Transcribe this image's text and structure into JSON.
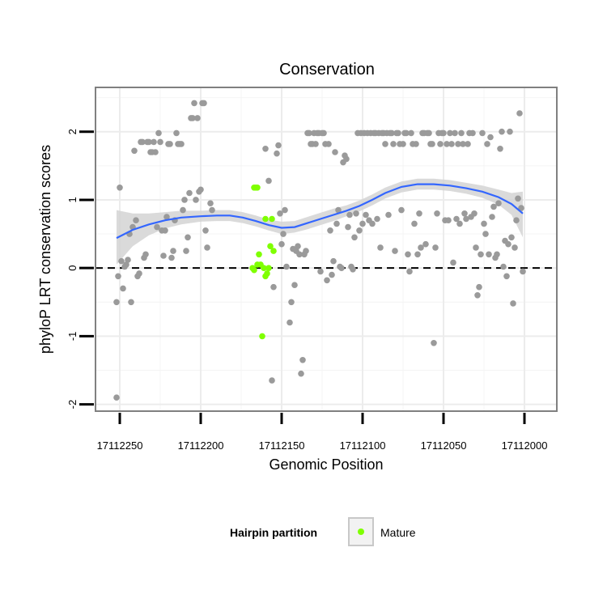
{
  "chart_data": {
    "type": "scatter",
    "title": "Conservation",
    "xlabel": "Genomic Position",
    "ylabel": "phyloP LRT conservation scores",
    "x_reversed": true,
    "xlim": [
      17112265,
      17111980
    ],
    "ylim": [
      -2.1,
      2.65
    ],
    "x_ticks": [
      17112250,
      17112200,
      17112150,
      17112100,
      17112050,
      17112000
    ],
    "y_ticks": [
      -2,
      -1,
      0,
      1,
      2
    ],
    "grid": true,
    "reference_line": {
      "y": 0,
      "style": "dashed"
    },
    "legend": {
      "title": "Hairpin partition",
      "placement": "bottom",
      "entries": [
        "Mature"
      ]
    },
    "colors": {
      "other": "#9a9a9a",
      "mature": "#7fff00",
      "smooth": "#3366ff",
      "band": "#d3d3d3"
    },
    "series": [
      {
        "group": "other",
        "points": [
          [
            17112252,
            -1.9
          ],
          [
            17112252,
            -0.5
          ],
          [
            17112251,
            -0.12
          ],
          [
            17112250,
            1.18
          ],
          [
            17112249,
            0.1
          ],
          [
            17112248,
            -0.3
          ],
          [
            17112247,
            0.02
          ],
          [
            17112246,
            0.05
          ],
          [
            17112245,
            0.12
          ],
          [
            17112244,
            0.5
          ],
          [
            17112243,
            -0.5
          ],
          [
            17112242,
            0.6
          ],
          [
            17112241,
            1.72
          ],
          [
            17112240,
            0.7
          ],
          [
            17112239,
            -0.12
          ],
          [
            17112238,
            -0.08
          ],
          [
            17112237,
            1.85
          ],
          [
            17112236,
            1.85
          ],
          [
            17112235,
            0.15
          ],
          [
            17112234,
            0.2
          ],
          [
            17112233,
            1.85
          ],
          [
            17112232,
            1.85
          ],
          [
            17112231,
            1.7
          ],
          [
            17112230,
            1.7
          ],
          [
            17112229,
            1.85
          ],
          [
            17112228,
            1.7
          ],
          [
            17112227,
            0.6
          ],
          [
            17112226,
            1.98
          ],
          [
            17112225,
            1.85
          ],
          [
            17112224,
            0.55
          ],
          [
            17112223,
            0.18
          ],
          [
            17112222,
            0.55
          ],
          [
            17112221,
            0.75
          ],
          [
            17112220,
            1.82
          ],
          [
            17112219,
            1.82
          ],
          [
            17112218,
            0.15
          ],
          [
            17112217,
            0.25
          ],
          [
            17112216,
            0.7
          ],
          [
            17112215,
            1.98
          ],
          [
            17112214,
            1.82
          ],
          [
            17112213,
            1.82
          ],
          [
            17112212,
            1.82
          ],
          [
            17112211,
            0.85
          ],
          [
            17112210,
            1.0
          ],
          [
            17112209,
            0.25
          ],
          [
            17112208,
            0.45
          ],
          [
            17112207,
            1.1
          ],
          [
            17112206,
            2.2
          ],
          [
            17112205,
            2.2
          ],
          [
            17112204,
            2.42
          ],
          [
            17112203,
            1.0
          ],
          [
            17112202,
            2.2
          ],
          [
            17112201,
            1.12
          ],
          [
            17112200,
            1.15
          ],
          [
            17112199,
            2.42
          ],
          [
            17112198,
            2.42
          ],
          [
            17112197,
            0.55
          ],
          [
            17112196,
            0.3
          ],
          [
            17112194,
            0.95
          ],
          [
            17112193,
            0.85
          ],
          [
            17112160,
            1.75
          ],
          [
            17112158,
            1.28
          ],
          [
            17112156,
            -1.65
          ],
          [
            17112155,
            -0.28
          ],
          [
            17112153,
            1.68
          ],
          [
            17112152,
            1.8
          ],
          [
            17112151,
            0.8
          ],
          [
            17112150,
            0.35
          ],
          [
            17112149,
            0.5
          ],
          [
            17112148,
            0.85
          ],
          [
            17112147,
            0.02
          ],
          [
            17112145,
            -0.8
          ],
          [
            17112144,
            -0.5
          ],
          [
            17112143,
            0.28
          ],
          [
            17112142,
            -0.25
          ],
          [
            17112141,
            0.25
          ],
          [
            17112140,
            0.32
          ],
          [
            17112139,
            0.2
          ],
          [
            17112138,
            -1.55
          ],
          [
            17112137,
            -1.35
          ],
          [
            17112136,
            0.2
          ],
          [
            17112135,
            0.25
          ],
          [
            17112134,
            1.98
          ],
          [
            17112133,
            1.98
          ],
          [
            17112132,
            1.82
          ],
          [
            17112131,
            1.82
          ],
          [
            17112130,
            1.98
          ],
          [
            17112129,
            1.82
          ],
          [
            17112128,
            1.98
          ],
          [
            17112127,
            1.98
          ],
          [
            17112126,
            -0.05
          ],
          [
            17112125,
            1.98
          ],
          [
            17112124,
            1.98
          ],
          [
            17112123,
            1.82
          ],
          [
            17112122,
            -0.18
          ],
          [
            17112121,
            1.82
          ],
          [
            17112120,
            0.55
          ],
          [
            17112119,
            -0.1
          ],
          [
            17112118,
            0.1
          ],
          [
            17112117,
            1.7
          ],
          [
            17112116,
            0.65
          ],
          [
            17112115,
            0.85
          ],
          [
            17112114,
            0.02
          ],
          [
            17112113,
            0.0
          ],
          [
            17112112,
            1.55
          ],
          [
            17112111,
            1.65
          ],
          [
            17112110,
            1.6
          ],
          [
            17112109,
            0.6
          ],
          [
            17112108,
            0.78
          ],
          [
            17112107,
            0.02
          ],
          [
            17112106,
            -0.02
          ],
          [
            17112105,
            0.45
          ],
          [
            17112104,
            0.8
          ],
          [
            17112103,
            1.98
          ],
          [
            17112102,
            0.55
          ],
          [
            17112101,
            1.98
          ],
          [
            17112100,
            0.65
          ],
          [
            17112099,
            1.98
          ],
          [
            17112098,
            0.78
          ],
          [
            17112097,
            1.98
          ],
          [
            17112096,
            0.7
          ],
          [
            17112095,
            1.98
          ],
          [
            17112094,
            0.65
          ],
          [
            17112093,
            1.98
          ],
          [
            17112092,
            1.98
          ],
          [
            17112091,
            0.72
          ],
          [
            17112090,
            1.98
          ],
          [
            17112089,
            0.3
          ],
          [
            17112088,
            1.98
          ],
          [
            17112087,
            1.98
          ],
          [
            17112086,
            1.82
          ],
          [
            17112085,
            1.98
          ],
          [
            17112084,
            0.78
          ],
          [
            17112083,
            1.98
          ],
          [
            17112082,
            1.98
          ],
          [
            17112081,
            1.82
          ],
          [
            17112080,
            0.25
          ],
          [
            17112079,
            1.98
          ],
          [
            17112078,
            1.98
          ],
          [
            17112077,
            1.82
          ],
          [
            17112076,
            0.85
          ],
          [
            17112075,
            1.82
          ],
          [
            17112074,
            1.98
          ],
          [
            17112073,
            1.98
          ],
          [
            17112072,
            0.2
          ],
          [
            17112071,
            -0.05
          ],
          [
            17112070,
            1.98
          ],
          [
            17112069,
            1.82
          ],
          [
            17112068,
            0.65
          ],
          [
            17112067,
            1.82
          ],
          [
            17112066,
            0.2
          ],
          [
            17112065,
            0.8
          ],
          [
            17112064,
            0.3
          ],
          [
            17112063,
            1.98
          ],
          [
            17112062,
            1.98
          ],
          [
            17112061,
            0.35
          ],
          [
            17112060,
            1.98
          ],
          [
            17112059,
            1.98
          ],
          [
            17112058,
            1.82
          ],
          [
            17112057,
            1.82
          ],
          [
            17112056,
            -1.1
          ],
          [
            17112055,
            0.3
          ],
          [
            17112054,
            0.8
          ],
          [
            17112053,
            1.98
          ],
          [
            17112052,
            1.82
          ],
          [
            17112051,
            1.98
          ],
          [
            17112050,
            1.98
          ],
          [
            17112049,
            0.7
          ],
          [
            17112048,
            1.82
          ],
          [
            17112047,
            0.7
          ],
          [
            17112046,
            1.98
          ],
          [
            17112045,
            1.82
          ],
          [
            17112044,
            0.08
          ],
          [
            17112043,
            1.98
          ],
          [
            17112042,
            0.72
          ],
          [
            17112041,
            1.82
          ],
          [
            17112040,
            0.65
          ],
          [
            17112039,
            1.98
          ],
          [
            17112038,
            1.82
          ],
          [
            17112037,
            0.8
          ],
          [
            17112036,
            0.72
          ],
          [
            17112035,
            1.82
          ],
          [
            17112034,
            1.98
          ],
          [
            17112033,
            0.75
          ],
          [
            17112032,
            1.98
          ],
          [
            17112031,
            0.8
          ],
          [
            17112030,
            0.3
          ],
          [
            17112029,
            -0.4
          ],
          [
            17112028,
            -0.28
          ],
          [
            17112027,
            0.2
          ],
          [
            17112026,
            1.98
          ],
          [
            17112025,
            0.65
          ],
          [
            17112024,
            0.5
          ],
          [
            17112023,
            1.82
          ],
          [
            17112022,
            0.2
          ],
          [
            17112021,
            1.92
          ],
          [
            17112020,
            0.75
          ],
          [
            17112019,
            0.9
          ],
          [
            17112018,
            0.15
          ],
          [
            17112017,
            0.2
          ],
          [
            17112016,
            0.95
          ],
          [
            17112015,
            1.75
          ],
          [
            17112014,
            2.0
          ],
          [
            17112013,
            0.02
          ],
          [
            17112012,
            0.4
          ],
          [
            17112011,
            -0.12
          ],
          [
            17112010,
            0.35
          ],
          [
            17112009,
            2.0
          ],
          [
            17112008,
            0.45
          ],
          [
            17112007,
            -0.52
          ],
          [
            17112006,
            0.3
          ],
          [
            17112005,
            0.7
          ],
          [
            17112004,
            1.02
          ],
          [
            17112003,
            2.27
          ],
          [
            17112002,
            0.88
          ],
          [
            17112001,
            -0.05
          ]
        ]
      },
      {
        "group": "mature",
        "name": "Mature",
        "points": [
          [
            17112167,
            1.18
          ],
          [
            17112166,
            1.18
          ],
          [
            17112165,
            1.18
          ],
          [
            17112168,
            0.0
          ],
          [
            17112167,
            -0.03
          ],
          [
            17112165,
            0.05
          ],
          [
            17112164,
            0.2
          ],
          [
            17112163,
            0.05
          ],
          [
            17112162,
            -1.0
          ],
          [
            17112161,
            0.0
          ],
          [
            17112160,
            -0.12
          ],
          [
            17112159,
            -0.08
          ],
          [
            17112160,
            0.72
          ],
          [
            17112158,
            0.0
          ],
          [
            17112157,
            0.32
          ],
          [
            17112156,
            0.72
          ],
          [
            17112155,
            0.25
          ]
        ]
      }
    ],
    "smooth": {
      "x": [
        17112252,
        17112242,
        17112232,
        17112222,
        17112212,
        17112200,
        17112190,
        17112182,
        17112174,
        17112166,
        17112158,
        17112150,
        17112142,
        17112134,
        17112126,
        17112118,
        17112110,
        17112102,
        17112094,
        17112086,
        17112076,
        17112066,
        17112056,
        17112046,
        17112036,
        17112026,
        17112016,
        17112008,
        17112001
      ],
      "y": [
        0.44,
        0.56,
        0.64,
        0.7,
        0.74,
        0.76,
        0.77,
        0.77,
        0.74,
        0.69,
        0.63,
        0.59,
        0.6,
        0.66,
        0.72,
        0.78,
        0.84,
        0.91,
        1.0,
        1.1,
        1.19,
        1.23,
        1.23,
        1.21,
        1.17,
        1.12,
        1.04,
        0.94,
        0.8
      ],
      "lower": [
        0.05,
        0.32,
        0.48,
        0.58,
        0.64,
        0.68,
        0.69,
        0.69,
        0.66,
        0.61,
        0.55,
        0.5,
        0.52,
        0.57,
        0.63,
        0.69,
        0.76,
        0.83,
        0.92,
        1.02,
        1.11,
        1.15,
        1.15,
        1.13,
        1.09,
        1.03,
        0.93,
        0.78,
        0.45
      ],
      "upper": [
        0.85,
        0.8,
        0.8,
        0.82,
        0.84,
        0.84,
        0.85,
        0.85,
        0.82,
        0.77,
        0.71,
        0.68,
        0.69,
        0.75,
        0.81,
        0.87,
        0.92,
        0.99,
        1.08,
        1.18,
        1.27,
        1.31,
        1.31,
        1.29,
        1.25,
        1.21,
        1.15,
        1.1,
        1.12
      ]
    }
  }
}
